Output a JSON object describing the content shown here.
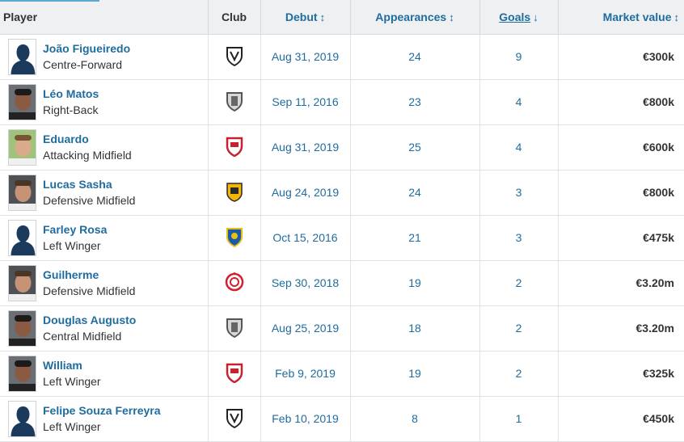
{
  "columns": {
    "player": "Player",
    "club": "Club",
    "debut": "Debut",
    "appearances": "Appearances",
    "goals": "Goals",
    "market_value": "Market value"
  },
  "sort_icons": {
    "sortable": "↕",
    "sorted_desc": "↓"
  },
  "rows": [
    {
      "name": "João Figueiredo",
      "position": "Centre-Forward",
      "debut": "Aug 31, 2019",
      "appearances": "24",
      "goals": "9",
      "market_value": "€300k",
      "club_crest": "crest-white-black"
    },
    {
      "name": "Léo Matos",
      "position": "Right-Back",
      "debut": "Sep 11, 2016",
      "appearances": "23",
      "goals": "4",
      "market_value": "€800k",
      "club_crest": "crest-grey"
    },
    {
      "name": "Eduardo",
      "position": "Attacking Midfield",
      "debut": "Aug 31, 2019",
      "appearances": "25",
      "goals": "4",
      "market_value": "€600k",
      "club_crest": "crest-red"
    },
    {
      "name": "Lucas Sasha",
      "position": "Defensive Midfield",
      "debut": "Aug 24, 2019",
      "appearances": "24",
      "goals": "3",
      "market_value": "€800k",
      "club_crest": "crest-yellow-black"
    },
    {
      "name": "Farley Rosa",
      "position": "Left Winger",
      "debut": "Oct 15, 2016",
      "appearances": "21",
      "goals": "3",
      "market_value": "€475k",
      "club_crest": "crest-blue-yellow"
    },
    {
      "name": "Guilherme",
      "position": "Defensive Midfield",
      "debut": "Sep 30, 2018",
      "appearances": "19",
      "goals": "2",
      "market_value": "€3.20m",
      "club_crest": "crest-red-circle"
    },
    {
      "name": "Douglas Augusto",
      "position": "Central Midfield",
      "debut": "Aug 25, 2019",
      "appearances": "18",
      "goals": "2",
      "market_value": "€3.20m",
      "club_crest": "crest-grey"
    },
    {
      "name": "William",
      "position": "Left Winger",
      "debut": "Feb 9, 2019",
      "appearances": "19",
      "goals": "2",
      "market_value": "€325k",
      "club_crest": "crest-red"
    },
    {
      "name": "Felipe Souza Ferreyra",
      "position": "Left Winger",
      "debut": "Feb 10, 2019",
      "appearances": "8",
      "goals": "1",
      "market_value": "€450k",
      "club_crest": "crest-white-black"
    }
  ],
  "avatars": [
    "silhouette",
    "photo-dark",
    "photo-light",
    "photo-mid",
    "silhouette",
    "photo-mid",
    "photo-dark",
    "photo-dark",
    "silhouette"
  ],
  "colors": {
    "link": "#1f6c9f",
    "header_bg": "#eef0f2",
    "accent": "#5ea7d6"
  }
}
